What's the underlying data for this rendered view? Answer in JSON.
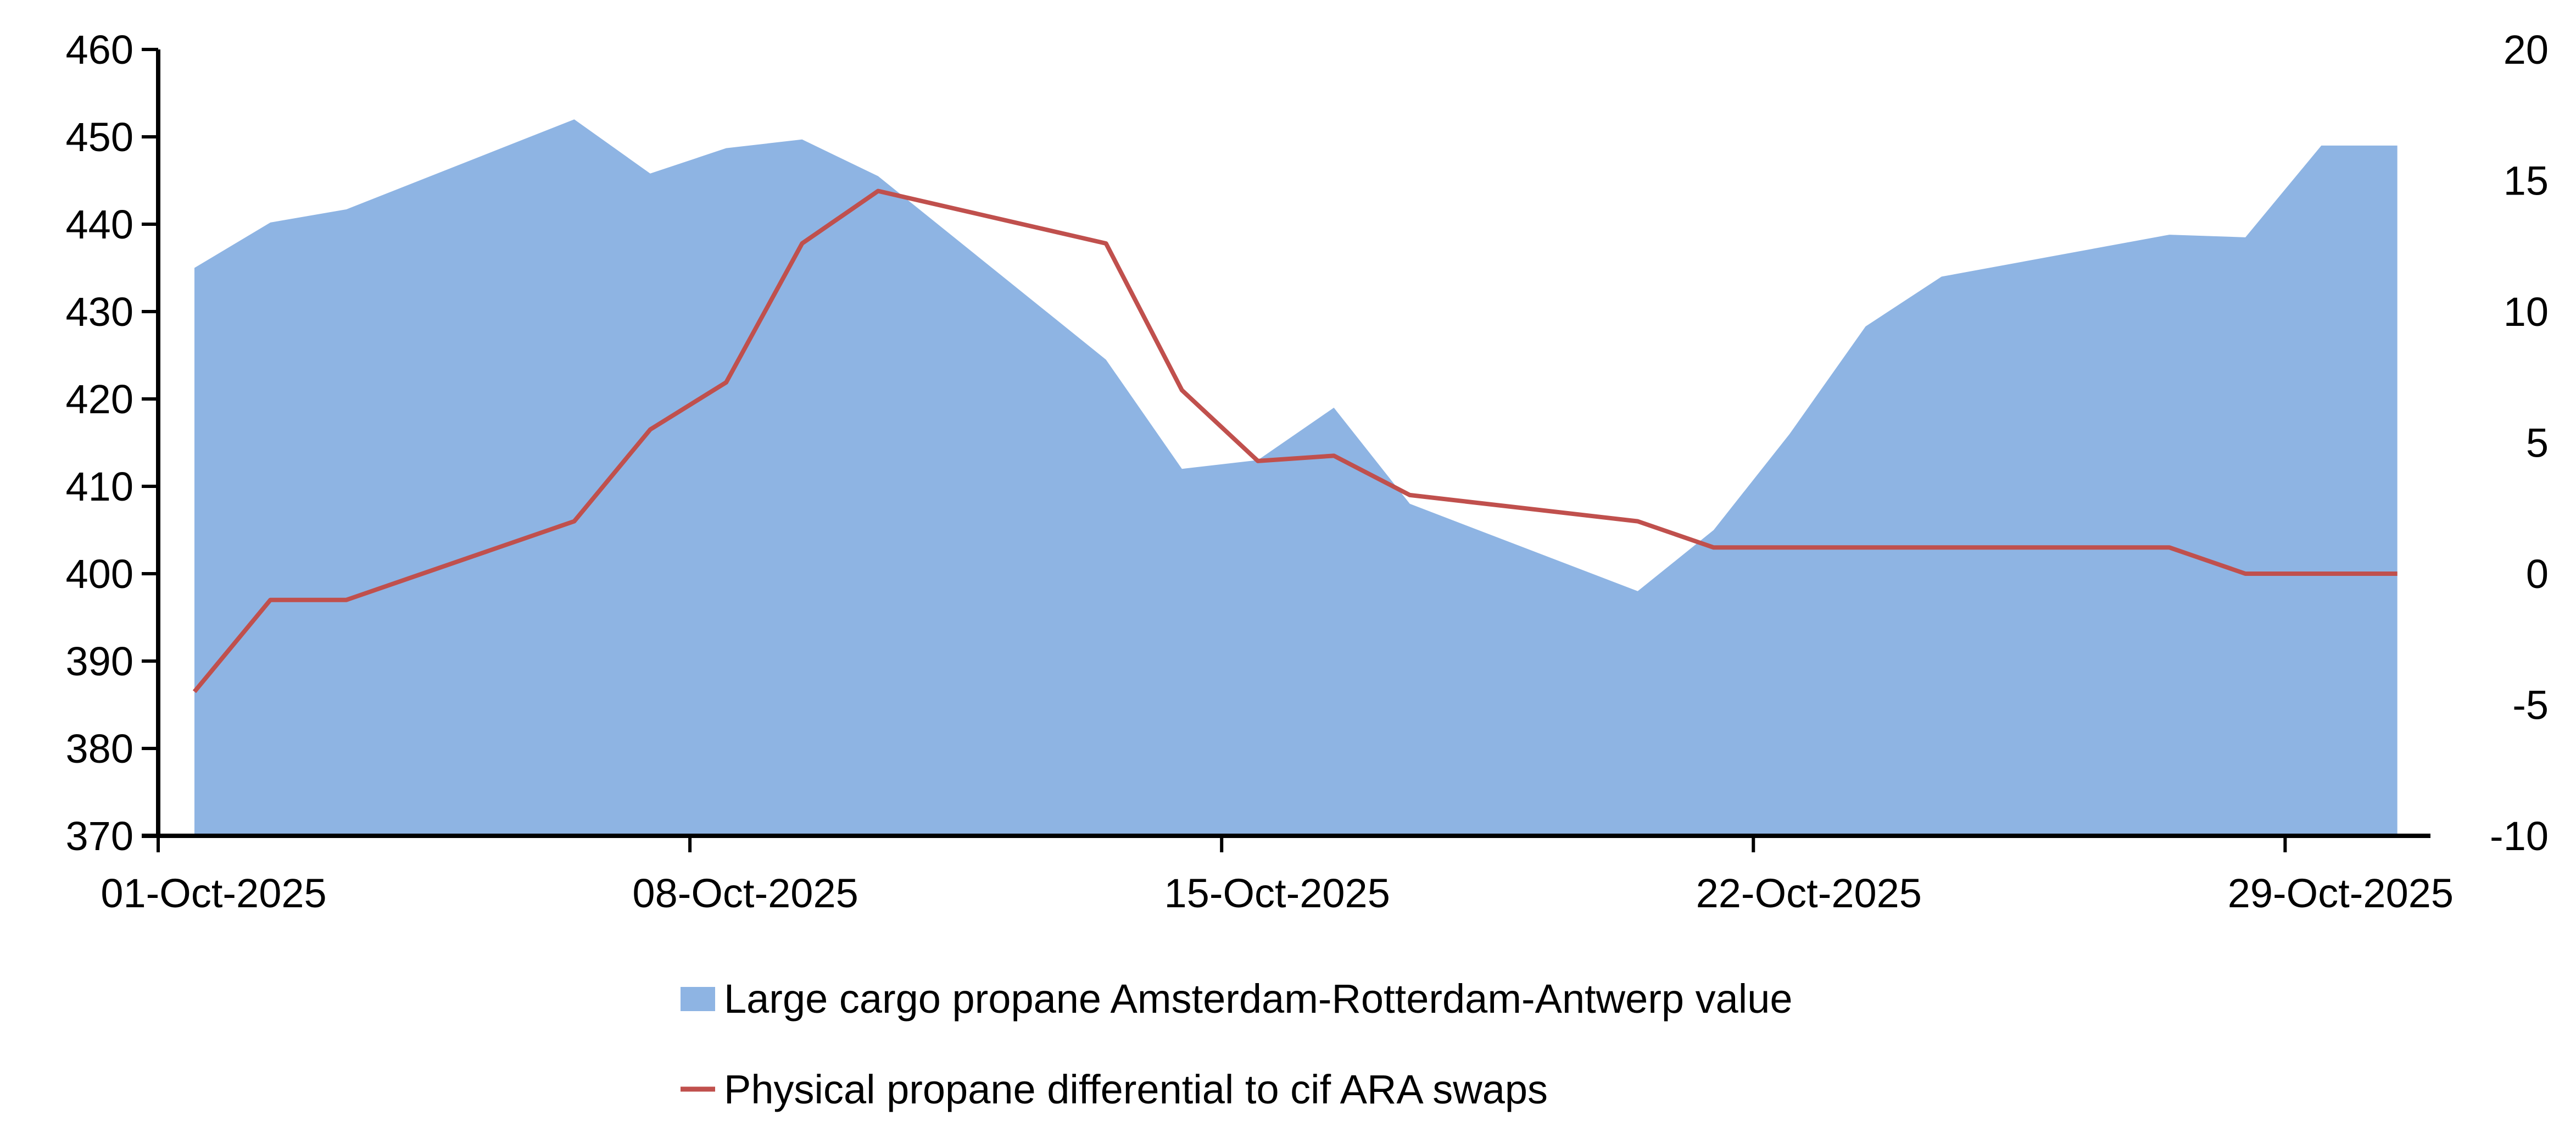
{
  "chart_data": {
    "type": "area+line",
    "title": "",
    "x_tick_labels": [
      "01-Oct-2025",
      "08-Oct-2025",
      "15-Oct-2025",
      "22-Oct-2025",
      "29-Oct-2025"
    ],
    "x_tick_days": [
      1,
      8,
      15,
      22,
      29
    ],
    "left_axis": {
      "min": 370,
      "max": 460,
      "step": 10,
      "ticks": [
        "370",
        "380",
        "390",
        "400",
        "410",
        "420",
        "430",
        "440",
        "450",
        "460"
      ]
    },
    "right_axis": {
      "min": -10,
      "max": 20,
      "step": 5,
      "ticks": [
        "-10",
        "-5",
        "0",
        "5",
        "10",
        "15",
        "20"
      ]
    },
    "days": [
      1,
      2,
      3,
      6,
      7,
      8,
      9,
      10,
      13,
      14,
      15,
      16,
      17,
      20,
      21,
      22,
      23,
      24,
      27,
      28,
      29,
      30
    ],
    "series": [
      {
        "name": "Large cargo propane Amsterdam-Rotterdam-Antwerp value",
        "type": "area",
        "axis": "left",
        "color": "#8EB4E3",
        "values": [
          435,
          440.2,
          441.7,
          452,
          445.8,
          448.7,
          449.7,
          445.5,
          424.5,
          412,
          413,
          419,
          408,
          398,
          405,
          416,
          428.3,
          434,
          438.8,
          438.5,
          449,
          449
        ]
      },
      {
        "name": "Physical propane differential to cif ARA swaps",
        "type": "line",
        "axis": "right",
        "color": "#C0504D",
        "values": [
          -4.5,
          -1,
          -1,
          2,
          5.5,
          7.3,
          12.6,
          14.6,
          12.6,
          7,
          4.3,
          4.5,
          3,
          2,
          1,
          1,
          1,
          1,
          1,
          0,
          0,
          0
        ]
      }
    ],
    "legend_position": "bottom"
  }
}
